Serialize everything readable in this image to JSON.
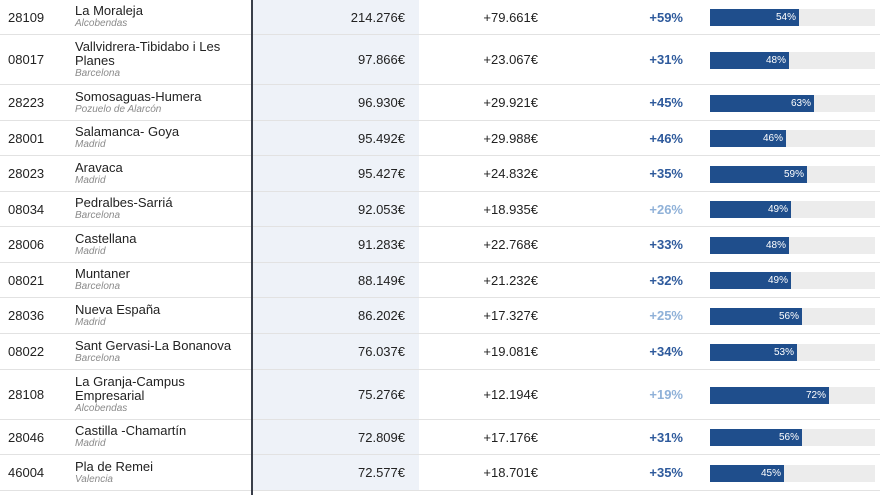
{
  "colors": {
    "bar": "#1f4e8c",
    "pct_strong": "#2e5a9c",
    "pct_light": "#8fb1d8"
  },
  "rows": [
    {
      "zip": "28109",
      "name": "La Moraleja",
      "city": "Alcobendas",
      "income": "214.276€",
      "diff": "+79.661€",
      "pct": "+59%",
      "pct_tone": "strong",
      "share": 54,
      "share_label": "54%"
    },
    {
      "zip": "08017",
      "name": "Vallvidrera-Tibidabo i Les Planes",
      "city": "Barcelona",
      "income": "97.866€",
      "diff": "+23.067€",
      "pct": "+31%",
      "pct_tone": "strong",
      "share": 48,
      "share_label": "48%"
    },
    {
      "zip": "28223",
      "name": "Somosaguas-Humera",
      "city": "Pozuelo de Alarcón",
      "income": "96.930€",
      "diff": "+29.921€",
      "pct": "+45%",
      "pct_tone": "strong",
      "share": 63,
      "share_label": "63%"
    },
    {
      "zip": "28001",
      "name": "Salamanca- Goya",
      "city": "Madrid",
      "income": "95.492€",
      "diff": "+29.988€",
      "pct": "+46%",
      "pct_tone": "strong",
      "share": 46,
      "share_label": "46%"
    },
    {
      "zip": "28023",
      "name": "Aravaca",
      "city": "Madrid",
      "income": "95.427€",
      "diff": "+24.832€",
      "pct": "+35%",
      "pct_tone": "strong",
      "share": 59,
      "share_label": "59%"
    },
    {
      "zip": "08034",
      "name": "Pedralbes-Sarriá",
      "city": "Barcelona",
      "income": "92.053€",
      "diff": "+18.935€",
      "pct": "+26%",
      "pct_tone": "light",
      "share": 49,
      "share_label": "49%"
    },
    {
      "zip": "28006",
      "name": "Castellana",
      "city": "Madrid",
      "income": "91.283€",
      "diff": "+22.768€",
      "pct": "+33%",
      "pct_tone": "strong",
      "share": 48,
      "share_label": "48%"
    },
    {
      "zip": "08021",
      "name": "Muntaner",
      "city": "Barcelona",
      "income": "88.149€",
      "diff": "+21.232€",
      "pct": "+32%",
      "pct_tone": "strong",
      "share": 49,
      "share_label": "49%"
    },
    {
      "zip": "28036",
      "name": "Nueva España",
      "city": "Madrid",
      "income": "86.202€",
      "diff": "+17.327€",
      "pct": "+25%",
      "pct_tone": "light",
      "share": 56,
      "share_label": "56%"
    },
    {
      "zip": "08022",
      "name": "Sant Gervasi-La Bonanova",
      "city": "Barcelona",
      "income": "76.037€",
      "diff": "+19.081€",
      "pct": "+34%",
      "pct_tone": "strong",
      "share": 53,
      "share_label": "53%"
    },
    {
      "zip": "28108",
      "name": "La Granja-Campus Empresarial",
      "city": "Alcobendas",
      "income": "75.276€",
      "diff": "+12.194€",
      "pct": "+19%",
      "pct_tone": "light",
      "share": 72,
      "share_label": "72%"
    },
    {
      "zip": "28046",
      "name": "Castilla -Chamartín",
      "city": "Madrid",
      "income": "72.809€",
      "diff": "+17.176€",
      "pct": "+31%",
      "pct_tone": "strong",
      "share": 56,
      "share_label": "56%"
    },
    {
      "zip": "46004",
      "name": "Pla de Remei",
      "city": "Valencia",
      "income": "72.577€",
      "diff": "+18.701€",
      "pct": "+35%",
      "pct_tone": "strong",
      "share": 45,
      "share_label": "45%"
    }
  ]
}
